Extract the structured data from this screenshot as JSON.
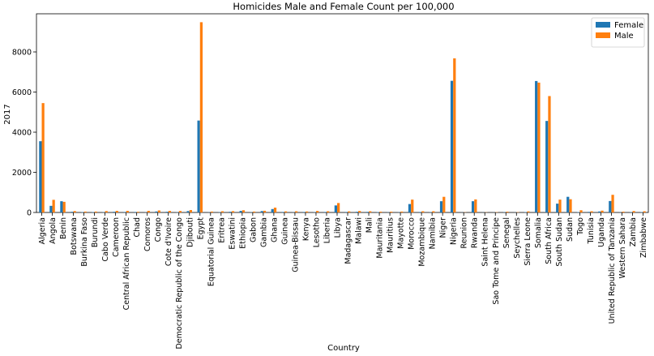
{
  "chart_data": {
    "type": "bar",
    "title": "Homicides Male and Female Count per 100,000",
    "xlabel": "Country",
    "ylabel": "2017",
    "ylim": [
      0,
      9900
    ],
    "yticks": [
      0,
      2000,
      4000,
      6000,
      8000
    ],
    "legend_position": "top-right",
    "grid": false,
    "categories": [
      "Algeria",
      "Angola",
      "Benin",
      "Botswana",
      "Burkina Faso",
      "Burundi",
      "Cabo Verde",
      "Cameroon",
      "Central African Republic",
      "Chad",
      "Comoros",
      "Congo",
      "Cote d'Ivoire",
      "Democratic Republic of the Congo",
      "Djibouti",
      "Egypt",
      "Equatorial Guinea",
      "Eritrea",
      "Eswatini",
      "Ethiopia",
      "Gabon",
      "Gambia",
      "Ghana",
      "Guinea",
      "Guinea-Bissau",
      "Kenya",
      "Lesotho",
      "Liberia",
      "Libya",
      "Madagascar",
      "Malawi",
      "Mali",
      "Mauritania",
      "Mauritius",
      "Mayotte",
      "Morocco",
      "Mozambique",
      "Namibia",
      "Niger",
      "Nigeria",
      "Reunion",
      "Rwanda",
      "Saint Helena",
      "Sao Tome and Principe",
      "Senegal",
      "Seychelles",
      "Sierra Leone",
      "Somalia",
      "South Africa",
      "South Sudan",
      "Sudan",
      "Togo",
      "Tunisia",
      "Uganda",
      "United Republic of Tanzania",
      "Western Sahara",
      "Zambia",
      "Zimbabwe"
    ],
    "series": [
      {
        "name": "Female",
        "color": "#1f77b4",
        "values": [
          3550,
          330,
          560,
          35,
          20,
          20,
          15,
          35,
          25,
          25,
          10,
          50,
          35,
          15,
          70,
          4580,
          10,
          15,
          35,
          80,
          15,
          70,
          170,
          25,
          10,
          25,
          15,
          25,
          350,
          25,
          35,
          30,
          20,
          10,
          10,
          420,
          25,
          15,
          560,
          6560,
          5,
          560,
          5,
          5,
          15,
          5,
          20,
          6550,
          4560,
          440,
          780,
          20,
          30,
          50,
          570,
          10,
          20,
          20
        ]
      },
      {
        "name": "Male",
        "color": "#ff7f0e",
        "values": [
          5450,
          630,
          530,
          70,
          45,
          45,
          70,
          80,
          80,
          35,
          80,
          100,
          80,
          75,
          120,
          9480,
          45,
          60,
          65,
          110,
          45,
          85,
          240,
          55,
          60,
          50,
          75,
          60,
          470,
          55,
          75,
          60,
          40,
          40,
          45,
          640,
          60,
          60,
          780,
          7680,
          10,
          650,
          10,
          15,
          40,
          15,
          55,
          6470,
          5800,
          640,
          660,
          110,
          60,
          90,
          880,
          40,
          70,
          60
        ]
      }
    ]
  }
}
